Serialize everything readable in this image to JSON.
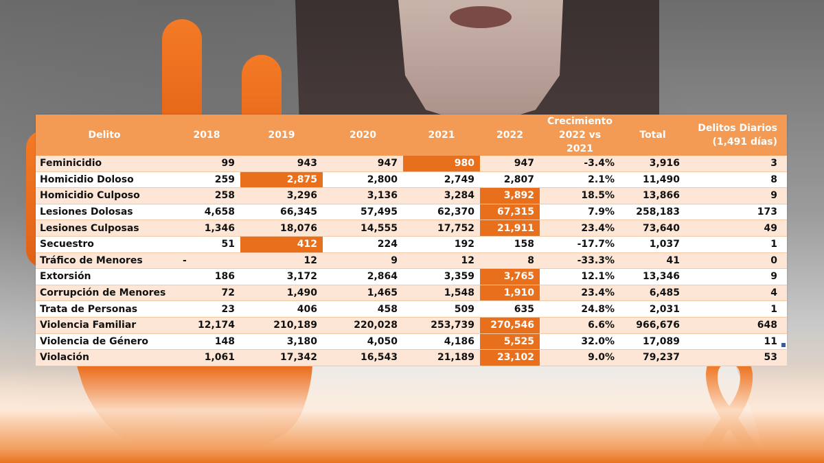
{
  "colors": {
    "header_bg": "#f39a55",
    "row_alt_bg": "#fde6d6",
    "highlight": "#e8701c",
    "header_text": "#ffffff"
  },
  "background": {
    "icons": [
      "raised-hand-image",
      "woman-figure-image",
      "orange-awareness-ribbon-icon"
    ]
  },
  "table": {
    "headers": {
      "delito": "Delito",
      "y2018": "2018",
      "y2019": "2019",
      "y2020": "2020",
      "y2021": "2021",
      "y2022": "2022",
      "crecimiento_1": "Crecimiento",
      "crecimiento_2": "2022 vs 2021",
      "total": "Total",
      "diarios_1": "Delitos Diarios",
      "diarios_2": "(1,491 días)"
    },
    "rows": [
      {
        "delito": "Feminicidio",
        "y2018": "99",
        "y2019": "943",
        "y2020": "947",
        "y2021": "980",
        "y2022": "947",
        "crec": "-3.4%",
        "total": "3,916",
        "diarios": "3",
        "highlight": "y2021"
      },
      {
        "delito": "Homicidio Doloso",
        "y2018": "259",
        "y2019": "2,875",
        "y2020": "2,800",
        "y2021": "2,749",
        "y2022": "2,807",
        "crec": "2.1%",
        "total": "11,490",
        "diarios": "8",
        "highlight": "y2019"
      },
      {
        "delito": "Homicidio Culposo",
        "y2018": "258",
        "y2019": "3,296",
        "y2020": "3,136",
        "y2021": "3,284",
        "y2022": "3,892",
        "crec": "18.5%",
        "total": "13,866",
        "diarios": "9",
        "highlight": "y2022"
      },
      {
        "delito": "Lesiones Dolosas",
        "y2018": "4,658",
        "y2019": "66,345",
        "y2020": "57,495",
        "y2021": "62,370",
        "y2022": "67,315",
        "crec": "7.9%",
        "total": "258,183",
        "diarios": "173",
        "highlight": "y2022"
      },
      {
        "delito": "Lesiones Culposas",
        "y2018": "1,346",
        "y2019": "18,076",
        "y2020": "14,555",
        "y2021": "17,752",
        "y2022": "21,911",
        "crec": "23.4%",
        "total": "73,640",
        "diarios": "49",
        "highlight": "y2022"
      },
      {
        "delito": "Secuestro",
        "y2018": "51",
        "y2019": "412",
        "y2020": "224",
        "y2021": "192",
        "y2022": "158",
        "crec": "-17.7%",
        "total": "1,037",
        "diarios": "1",
        "highlight": "y2019"
      },
      {
        "delito": "Tráfico de Menores",
        "y2018": "-",
        "y2019": "12",
        "y2020": "9",
        "y2021": "12",
        "y2022": "8",
        "crec": "-33.3%",
        "total": "41",
        "diarios": "0",
        "highlight": ""
      },
      {
        "delito": "Extorsión",
        "y2018": "186",
        "y2019": "3,172",
        "y2020": "2,864",
        "y2021": "3,359",
        "y2022": "3,765",
        "crec": "12.1%",
        "total": "13,346",
        "diarios": "9",
        "highlight": "y2022"
      },
      {
        "delito": "Corrupción de Menores",
        "y2018": "72",
        "y2019": "1,490",
        "y2020": "1,465",
        "y2021": "1,548",
        "y2022": "1,910",
        "crec": "23.4%",
        "total": "6,485",
        "diarios": "4",
        "highlight": "y2022"
      },
      {
        "delito": "Trata de Personas",
        "y2018": "23",
        "y2019": "406",
        "y2020": "458",
        "y2021": "509",
        "y2022": "635",
        "crec": "24.8%",
        "total": "2,031",
        "diarios": "1",
        "highlight": ""
      },
      {
        "delito": "Violencia Familiar",
        "y2018": "12,174",
        "y2019": "210,189",
        "y2020": "220,028",
        "y2021": "253,739",
        "y2022": "270,546",
        "crec": "6.6%",
        "total": "966,676",
        "diarios": "648",
        "highlight": "y2022"
      },
      {
        "delito": "Violencia de Género",
        "y2018": "148",
        "y2019": "3,180",
        "y2020": "4,050",
        "y2021": "4,186",
        "y2022": "5,525",
        "crec": "32.0%",
        "total": "17,089",
        "diarios": "11",
        "highlight": "y2022"
      },
      {
        "delito": "Violación",
        "y2018": "1,061",
        "y2019": "17,342",
        "y2020": "16,543",
        "y2021": "21,189",
        "y2022": "23,102",
        "crec": "9.0%",
        "total": "79,237",
        "diarios": "53",
        "highlight": "y2022"
      }
    ]
  }
}
